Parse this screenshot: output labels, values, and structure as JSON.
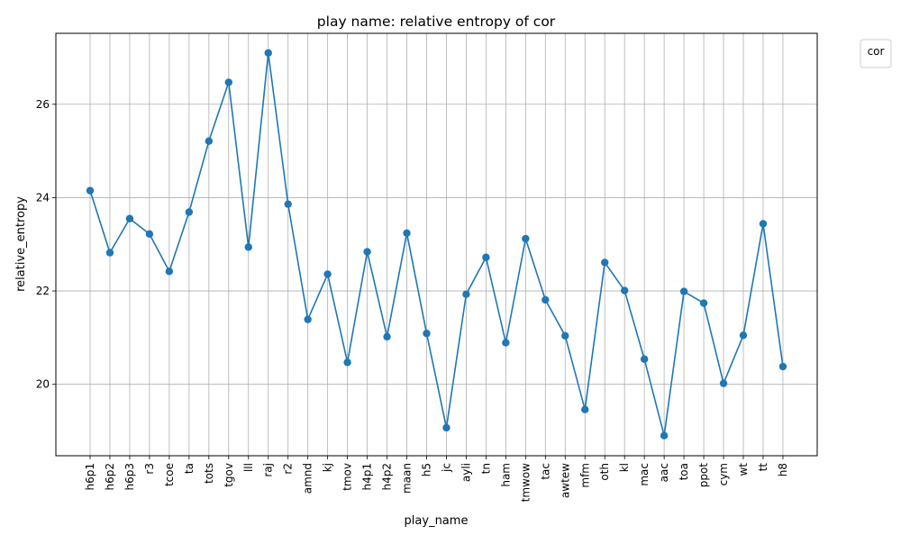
{
  "chart_data": {
    "type": "line",
    "title": "play name: relative entropy of cor",
    "xlabel": "play_name",
    "ylabel": "relative_entropy",
    "legend_title": "cor",
    "legend_position": "outside-top-right",
    "grid": true,
    "ylim": [
      18.47,
      27.52
    ],
    "yticks": [
      20,
      22,
      24,
      26
    ],
    "line_color": "#1f77b4",
    "categories": [
      "h6p1",
      "h6p2",
      "h6p3",
      "r3",
      "tcoe",
      "ta",
      "tots",
      "tgov",
      "lll",
      "raj",
      "r2",
      "amnd",
      "kj",
      "tmov",
      "h4p1",
      "h4p2",
      "maan",
      "h5",
      "jc",
      "ayli",
      "tn",
      "ham",
      "tmwow",
      "tac",
      "awtew",
      "mfm",
      "oth",
      "kl",
      "mac",
      "aac",
      "toa",
      "ppot",
      "cym",
      "wt",
      "tt",
      "h8"
    ],
    "values": [
      24.15,
      22.82,
      23.55,
      23.22,
      22.42,
      23.69,
      25.21,
      26.47,
      22.94,
      27.1,
      23.86,
      21.39,
      22.36,
      20.47,
      22.84,
      21.02,
      23.24,
      21.09,
      19.07,
      21.93,
      22.72,
      20.89,
      23.12,
      21.81,
      21.04,
      19.46,
      22.61,
      22.01,
      20.54,
      18.9,
      21.99,
      21.74,
      20.02,
      21.05,
      23.44,
      20.38
    ]
  }
}
